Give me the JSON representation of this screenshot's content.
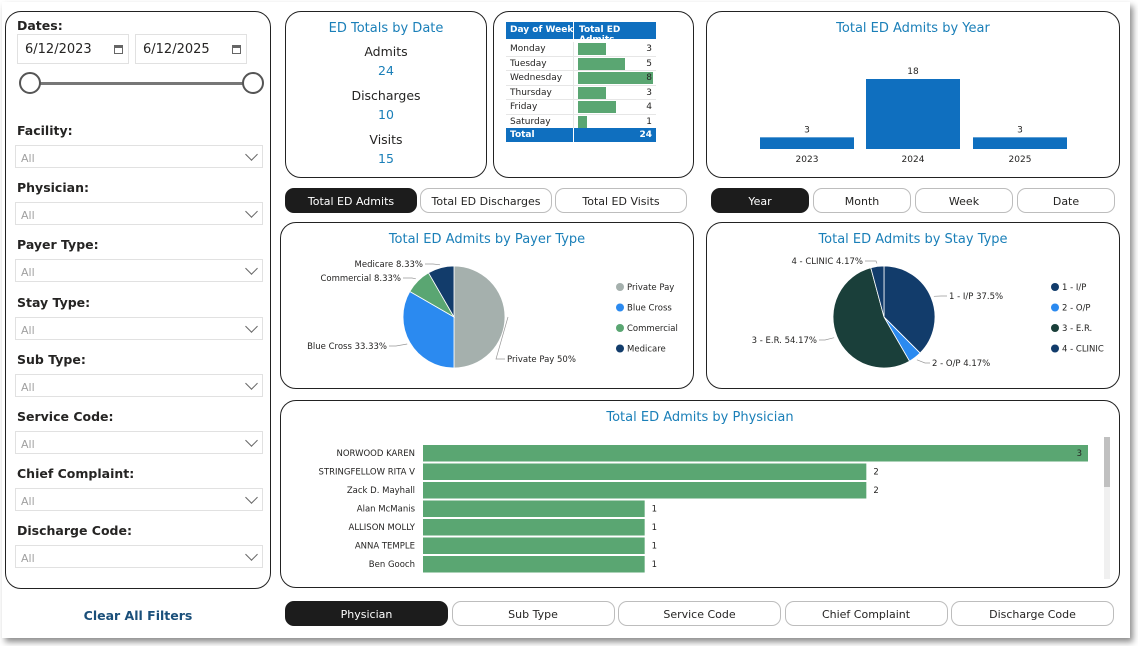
{
  "filters": {
    "dates_label": "Dates:",
    "date_start": "6/12/2023",
    "date_end": "6/12/2025",
    "items": [
      {
        "label": "Facility:",
        "value": "All"
      },
      {
        "label": "Physician:",
        "value": "All"
      },
      {
        "label": "Payer Type:",
        "value": "All"
      },
      {
        "label": "Stay Type:",
        "value": "All"
      },
      {
        "label": "Sub Type:",
        "value": "All"
      },
      {
        "label": "Service Code:",
        "value": "All"
      },
      {
        "label": "Chief Complaint:",
        "value": "All"
      },
      {
        "label": "Discharge Code:",
        "value": "All"
      }
    ],
    "clear_label": "Clear All Filters"
  },
  "totals": {
    "title": "ED Totals by Date",
    "admits_label": "Admits",
    "admits_value": "24",
    "discharges_label": "Discharges",
    "discharges_value": "10",
    "visits_label": "Visits",
    "visits_value": "15"
  },
  "dow_table": {
    "col1": "Day of Week",
    "col2": "Total ED Admits",
    "rows": [
      {
        "day": "Monday",
        "value": 3
      },
      {
        "day": "Tuesday",
        "value": 5
      },
      {
        "day": "Wednesday",
        "value": 8
      },
      {
        "day": "Thursday",
        "value": 3
      },
      {
        "day": "Friday",
        "value": 4
      },
      {
        "day": "Saturday",
        "value": 1
      }
    ],
    "total_label": "Total",
    "total_value": "24"
  },
  "measure_buttons": [
    "Total ED Admits",
    "Total ED Discharges",
    "Total ED Visits"
  ],
  "period_buttons": [
    "Year",
    "Month",
    "Week",
    "Date"
  ],
  "dimension_buttons": [
    "Physician",
    "Sub Type",
    "Service Code",
    "Chief Complaint",
    "Discharge Code"
  ],
  "colors": {
    "accent": "#1a7fb8",
    "bar_blue": "#0f6fbf",
    "bar_green": "#5aa672",
    "active_button": "#1c1c1c"
  },
  "chart_data": [
    {
      "type": "bar",
      "title": "Total ED Admits by Year",
      "categories": [
        "2023",
        "2024",
        "2025"
      ],
      "values": [
        3,
        18,
        3
      ],
      "ylim": [
        0,
        18
      ]
    },
    {
      "type": "pie",
      "title": "Total ED Admits by Payer Type",
      "slices": [
        {
          "name": "Private Pay",
          "value": 50,
          "label": "Private Pay 50%",
          "color": "#a5b0ad"
        },
        {
          "name": "Blue Cross",
          "value": 33.33,
          "label": "Blue Cross 33.33%",
          "color": "#2b8af0"
        },
        {
          "name": "Commercial",
          "value": 8.33,
          "label": "Commercial 8.33%",
          "color": "#5aa672"
        },
        {
          "name": "Medicare",
          "value": 8.33,
          "label": "Medicare 8.33%",
          "color": "#123c6b"
        }
      ]
    },
    {
      "type": "pie",
      "title": "Total ED Admits by Stay Type",
      "slices": [
        {
          "name": "1 - I/P",
          "value": 37.5,
          "label": "1 - I/P 37.5%",
          "color": "#123c6b"
        },
        {
          "name": "2 - O/P",
          "value": 4.17,
          "label": "2 - O/P 4.17%",
          "color": "#2b8af0"
        },
        {
          "name": "3 - E.R.",
          "value": 54.17,
          "label": "3 - E.R. 54.17%",
          "color": "#1a3f3a"
        },
        {
          "name": "4 - CLINIC",
          "value": 4.17,
          "label": "4 - CLINIC 4.17%",
          "color": "#123c6b"
        }
      ]
    },
    {
      "type": "bar",
      "title": "Total ED Admits by Physician",
      "orientation": "horizontal",
      "categories": [
        "NORWOOD KAREN",
        "STRINGFELLOW RITA V",
        "Zack D. Mayhall",
        "Alan McManis",
        "ALLISON MOLLY",
        "ANNA TEMPLE",
        "Ben Gooch"
      ],
      "values": [
        3,
        2,
        2,
        1,
        1,
        1,
        1
      ],
      "xlim": [
        0,
        3
      ]
    }
  ]
}
